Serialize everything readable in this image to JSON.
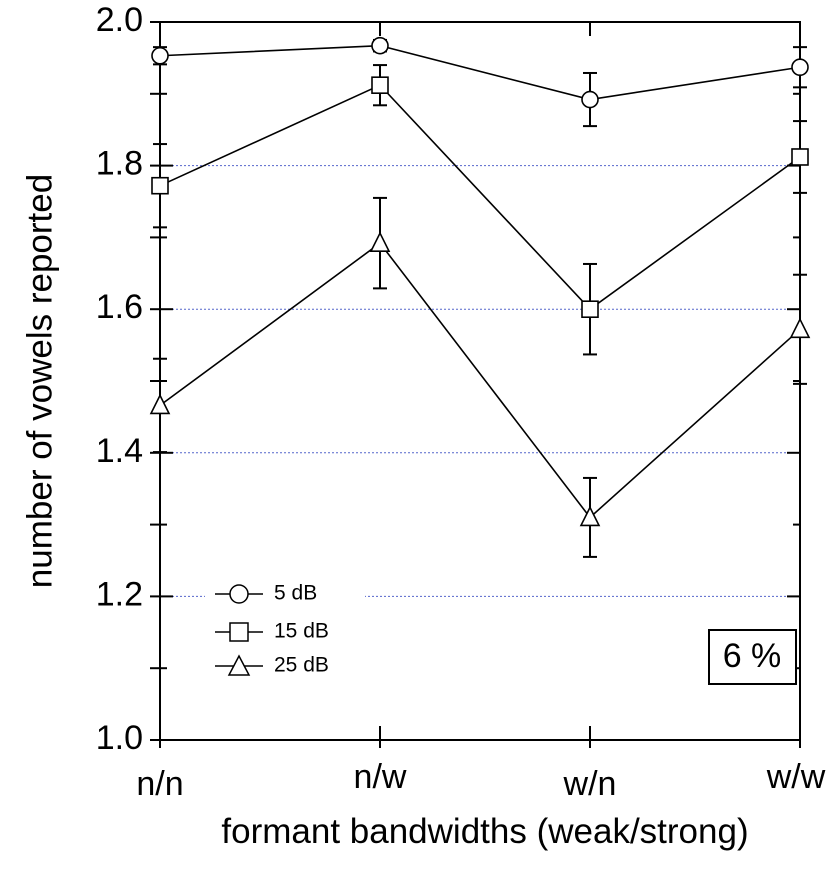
{
  "chart_data": {
    "type": "line",
    "xlabel": "formant bandwidths (weak/strong)",
    "ylabel": "number of vowels reported",
    "categories": [
      "n/n",
      "n/w",
      "w/n",
      "w/w"
    ],
    "ylim": [
      1.0,
      2.0
    ],
    "yticks": [
      "1.0",
      "1.2",
      "1.4",
      "1.6",
      "1.8",
      "2.0"
    ],
    "grid": "horizontal dotted",
    "legend_position": "bottom-left",
    "annotation": "6 %",
    "series": [
      {
        "name": "5 dB",
        "marker": "circle",
        "values": [
          1.953,
          1.967,
          1.892,
          1.937
        ],
        "errors": [
          0.012,
          0.008,
          0.037,
          0.028
        ]
      },
      {
        "name": "15 dB",
        "marker": "square",
        "values": [
          1.772,
          1.912,
          1.6,
          1.812
        ],
        "errors": [
          0.058,
          0.028,
          0.063,
          0.05
        ]
      },
      {
        "name": "25 dB",
        "marker": "triangle",
        "values": [
          1.466,
          1.692,
          1.31,
          1.572
        ],
        "errors": [
          0.065,
          0.063,
          0.055,
          0.076
        ]
      }
    ]
  }
}
